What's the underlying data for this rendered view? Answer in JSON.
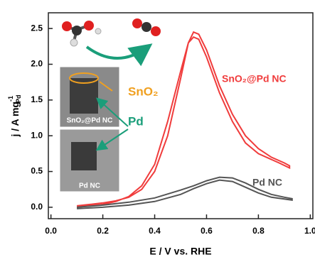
{
  "chart_data": {
    "type": "line",
    "xlabel": "E / V vs. RHE",
    "ylabel": {
      "text": "j / A mg",
      "sup": "-1",
      "sub": "Pd"
    },
    "xlim": [
      -0.01,
      1.01
    ],
    "ylim": [
      -0.16,
      2.72
    ],
    "xticks": [
      {
        "value": 0,
        "label": "0.0"
      },
      {
        "value": 0.2,
        "label": "0.2"
      },
      {
        "value": 0.4,
        "label": "0.4"
      },
      {
        "value": 0.6,
        "label": "0.6"
      },
      {
        "value": 0.8,
        "label": "0.8"
      },
      {
        "value": 1.0,
        "label": "1.0"
      }
    ],
    "yticks": [
      {
        "value": 0,
        "label": "0.0"
      },
      {
        "value": 0.5,
        "label": "0.5"
      },
      {
        "value": 1.0,
        "label": "1.0"
      },
      {
        "value": 1.5,
        "label": "1.5"
      },
      {
        "value": 2.0,
        "label": "2.0"
      },
      {
        "value": 2.5,
        "label": "2.5"
      }
    ],
    "series": [
      {
        "name": "SnO₂@Pd NC",
        "color": "#f03c3c",
        "x": [
          0.1,
          0.15,
          0.2,
          0.25,
          0.3,
          0.35,
          0.4,
          0.45,
          0.5,
          0.53,
          0.55,
          0.57,
          0.6,
          0.65,
          0.7,
          0.75,
          0.8,
          0.85,
          0.9,
          0.92,
          0.92,
          0.88,
          0.8,
          0.75,
          0.7,
          0.65,
          0.6,
          0.57,
          0.55,
          0.53,
          0.5,
          0.45,
          0.4,
          0.35,
          0.3,
          0.25,
          0.2,
          0.15,
          0.1
        ],
        "values": [
          0.02,
          0.04,
          0.06,
          0.09,
          0.14,
          0.25,
          0.5,
          1.0,
          1.8,
          2.3,
          2.45,
          2.42,
          2.2,
          1.7,
          1.3,
          1.0,
          0.82,
          0.7,
          0.62,
          0.58,
          0.55,
          0.62,
          0.75,
          0.9,
          1.2,
          1.6,
          2.1,
          2.35,
          2.38,
          2.3,
          1.9,
          1.2,
          0.6,
          0.3,
          0.15,
          0.08,
          0.04,
          0.02,
          0.0
        ]
      },
      {
        "name": "Pd NC",
        "color": "#555555",
        "x": [
          0.1,
          0.2,
          0.3,
          0.4,
          0.5,
          0.55,
          0.6,
          0.65,
          0.7,
          0.75,
          0.8,
          0.85,
          0.9,
          0.93,
          0.93,
          0.85,
          0.8,
          0.75,
          0.7,
          0.65,
          0.6,
          0.55,
          0.5,
          0.4,
          0.3,
          0.2,
          0.1
        ],
        "values": [
          0.0,
          0.03,
          0.07,
          0.13,
          0.24,
          0.3,
          0.37,
          0.42,
          0.41,
          0.34,
          0.25,
          0.18,
          0.14,
          0.12,
          0.1,
          0.14,
          0.2,
          0.28,
          0.36,
          0.38,
          0.33,
          0.26,
          0.18,
          0.08,
          0.03,
          0.0,
          -0.02
        ]
      }
    ],
    "annotations": {
      "shell": "SnO₂",
      "core": "Pd",
      "inset_top": "SnO₂@Pd NC",
      "inset_bottom": "Pd NC"
    }
  }
}
